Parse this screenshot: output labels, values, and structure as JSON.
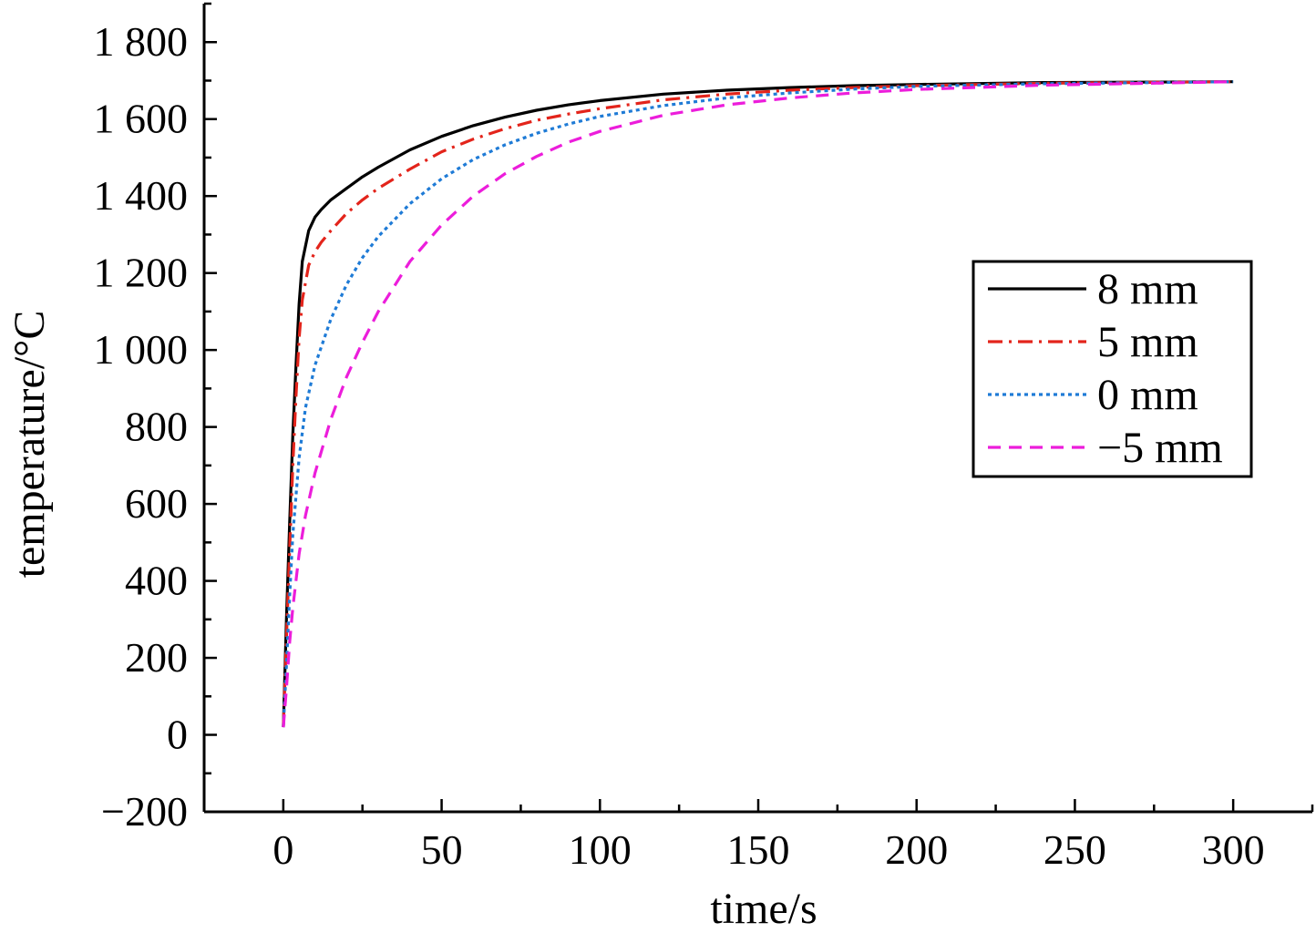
{
  "chart_data": {
    "type": "line",
    "xlabel": "time/s",
    "ylabel": "temperature/°C",
    "xlim": [
      -25,
      325
    ],
    "ylim": [
      -200,
      1900
    ],
    "x_ticks": [
      {
        "value": 0,
        "label": "0"
      },
      {
        "value": 50,
        "label": "50"
      },
      {
        "value": 100,
        "label": "100"
      },
      {
        "value": 150,
        "label": "150"
      },
      {
        "value": 200,
        "label": "200"
      },
      {
        "value": 250,
        "label": "250"
      },
      {
        "value": 300,
        "label": "300"
      }
    ],
    "x_minor_ticks": [
      25,
      75,
      125,
      175,
      225,
      275,
      325
    ],
    "y_ticks": [
      {
        "value": -200,
        "label": "−200"
      },
      {
        "value": 0,
        "label": "0"
      },
      {
        "value": 200,
        "label": "200"
      },
      {
        "value": 400,
        "label": "400"
      },
      {
        "value": 600,
        "label": "600"
      },
      {
        "value": 800,
        "label": "800"
      },
      {
        "value": 1000,
        "label": "1 000"
      },
      {
        "value": 1200,
        "label": "1 200"
      },
      {
        "value": 1400,
        "label": "1 400"
      },
      {
        "value": 1600,
        "label": "1 600"
      },
      {
        "value": 1800,
        "label": "1 800"
      }
    ],
    "y_minor_ticks": [
      -100,
      100,
      300,
      500,
      700,
      900,
      1100,
      1300,
      1500,
      1700,
      1900
    ],
    "grid": false,
    "legend_position": "right",
    "series": [
      {
        "name": "8 mm",
        "color": "#000000",
        "dash": "solid",
        "x": [
          0,
          1,
          2,
          3,
          4,
          5,
          6,
          8,
          10,
          12,
          15,
          20,
          25,
          30,
          40,
          50,
          60,
          70,
          80,
          90,
          100,
          120,
          140,
          160,
          180,
          200,
          240,
          300
        ],
        "y": [
          20,
          300,
          550,
          780,
          960,
          1120,
          1230,
          1310,
          1345,
          1365,
          1390,
          1420,
          1450,
          1475,
          1520,
          1555,
          1583,
          1605,
          1623,
          1637,
          1648,
          1665,
          1675,
          1682,
          1687,
          1690,
          1695,
          1697
        ]
      },
      {
        "name": "5 mm",
        "color": "#e3241b",
        "dash": "dashdot",
        "x": [
          0,
          1,
          2,
          3,
          4,
          5,
          6,
          8,
          10,
          12,
          15,
          20,
          25,
          30,
          40,
          50,
          60,
          70,
          80,
          90,
          100,
          120,
          140,
          160,
          180,
          200,
          240,
          300
        ],
        "y": [
          20,
          250,
          480,
          700,
          880,
          1030,
          1130,
          1220,
          1255,
          1280,
          1310,
          1355,
          1390,
          1420,
          1470,
          1515,
          1548,
          1575,
          1597,
          1613,
          1627,
          1650,
          1665,
          1675,
          1682,
          1687,
          1693,
          1697
        ]
      },
      {
        "name": "0 mm",
        "color": "#1f7bd6",
        "dash": "dotted",
        "x": [
          0,
          1,
          2,
          3,
          5,
          7,
          10,
          15,
          20,
          25,
          30,
          40,
          50,
          60,
          70,
          80,
          90,
          100,
          120,
          140,
          160,
          180,
          200,
          240,
          300
        ],
        "y": [
          20,
          180,
          360,
          520,
          720,
          850,
          960,
          1080,
          1170,
          1240,
          1295,
          1380,
          1445,
          1495,
          1533,
          1563,
          1587,
          1607,
          1635,
          1655,
          1668,
          1678,
          1685,
          1692,
          1697
        ]
      },
      {
        "name": "−5 mm",
        "color": "#ec1ddb",
        "dash": "dashed",
        "x": [
          0,
          1,
          2,
          3,
          5,
          7,
          10,
          15,
          20,
          25,
          30,
          40,
          50,
          60,
          70,
          80,
          90,
          100,
          120,
          140,
          160,
          180,
          200,
          240,
          300
        ],
        "y": [
          20,
          120,
          240,
          330,
          470,
          570,
          680,
          820,
          930,
          1020,
          1100,
          1230,
          1325,
          1400,
          1458,
          1503,
          1540,
          1568,
          1610,
          1637,
          1655,
          1668,
          1677,
          1688,
          1697
        ]
      }
    ]
  }
}
